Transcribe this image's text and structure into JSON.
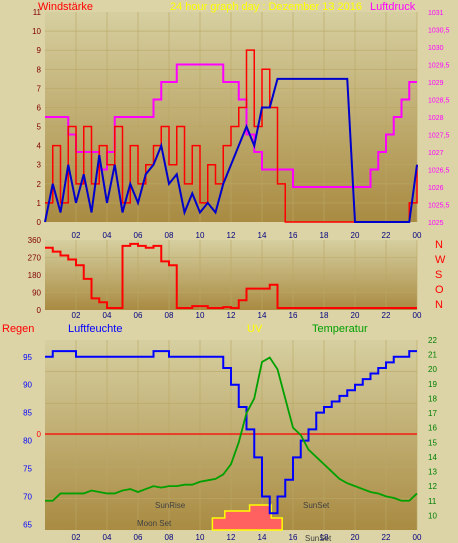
{
  "header": {
    "left_title": "Windstärke",
    "center_title": "24 hour graph day : Dezember 13 2016",
    "right_title": "Luftdruck"
  },
  "x_hours": [
    "02",
    "04",
    "06",
    "08",
    "10",
    "12",
    "14",
    "16",
    "18",
    "20",
    "22",
    "00"
  ],
  "colors": {
    "wind": "#ff0000",
    "wind_avg": "#0000cc",
    "pressure": "#ff00ff",
    "direction": "#ff0000",
    "humidity": "#0000ff",
    "temperature": "#00a000",
    "uv": "#ffff00",
    "rain_axis": "#ff0000",
    "plot_grad_top": "#d6cfa0",
    "plot_grad_bottom": "#a98b42",
    "grid": "#b9a764"
  },
  "chart_data": [
    {
      "type": "line",
      "title": "24 hour graph day : Dezember 13 2016",
      "ylabel": "Windstärke",
      "y2label": "Luftdruck",
      "ylim": [
        0,
        11
      ],
      "y2lim": [
        1025,
        1031
      ],
      "yticks": [
        "0",
        "1",
        "2",
        "3",
        "4",
        "5",
        "6",
        "7",
        "8",
        "9",
        "10",
        "11"
      ],
      "y2ticks": [
        "1025",
        "1025,5",
        "1026",
        "1026,5",
        "1027",
        "1027,5",
        "1028",
        "1028,5",
        "1029",
        "1029,5",
        "1030",
        "1030,5",
        "1031"
      ],
      "x": [
        0,
        0.5,
        1,
        1.5,
        2,
        2.5,
        3,
        3.5,
        4,
        4.5,
        5,
        5.5,
        6,
        6.5,
        7,
        7.5,
        8,
        8.5,
        9,
        9.5,
        10,
        10.5,
        11,
        11.5,
        12,
        12.5,
        13,
        13.5,
        14,
        14.5,
        15,
        15.5,
        16,
        16.5,
        17,
        17.5,
        18,
        18.5,
        19,
        19.5,
        20,
        20.5,
        21,
        21.5,
        22,
        22.5,
        23,
        23.5,
        24
      ],
      "series": [
        {
          "name": "Windstärke",
          "axis": "left",
          "values": [
            1,
            4,
            1,
            5,
            2,
            5,
            2,
            4,
            3,
            5,
            1,
            4,
            2,
            3,
            4,
            5,
            3,
            5,
            2,
            4,
            1,
            3,
            2,
            4,
            5,
            6,
            9,
            5,
            8,
            6,
            2,
            0,
            0,
            0,
            0,
            0,
            0,
            0,
            0,
            0,
            0,
            0,
            0,
            0,
            0,
            0,
            0,
            1,
            3
          ]
        },
        {
          "name": "",
          "axis": "left",
          "values": [
            0,
            2,
            0.5,
            3,
            1,
            2.5,
            0.5,
            3.5,
            1,
            3,
            0.5,
            2,
            1,
            2.5,
            3,
            4,
            2,
            2.5,
            0.5,
            1.5,
            0.5,
            1,
            0.5,
            2,
            3,
            4,
            5,
            4,
            6,
            6,
            7.5,
            7.5,
            7.5,
            7.5,
            7.5,
            7.5,
            7.5,
            7.5,
            7.5,
            7.5,
            0,
            0,
            0,
            0,
            0,
            0,
            0,
            0,
            3
          ]
        },
        {
          "name": "Luftdruck",
          "axis": "right",
          "values": [
            1028,
            1028,
            1028,
            1027.5,
            1027,
            1027,
            1027,
            1026.5,
            1027,
            1028,
            1028,
            1028,
            1028,
            1028,
            1028.5,
            1029,
            1029,
            1029.5,
            1029.5,
            1029.5,
            1029.5,
            1029.5,
            1029.5,
            1029,
            1029,
            1028.5,
            1027.5,
            1027,
            1026.5,
            1026.5,
            1026.5,
            1026.5,
            1026,
            1026,
            1026,
            1026,
            1026,
            1026,
            1026,
            1026,
            1026,
            1026,
            1026.5,
            1027,
            1027.5,
            1028,
            1028.5,
            1029,
            1029
          ]
        }
      ]
    },
    {
      "type": "line",
      "ylim": [
        0,
        360
      ],
      "yticks": [
        "0",
        "90",
        "180",
        "270",
        "360"
      ],
      "right_labels": [
        "N",
        "W",
        "S",
        "O",
        "N"
      ],
      "x": [
        0,
        0.5,
        1,
        1.5,
        2,
        2.5,
        3,
        3.5,
        4,
        4.5,
        5,
        5.5,
        6,
        6.5,
        7,
        7.5,
        8,
        8.5,
        9,
        9.5,
        10,
        10.5,
        11,
        11.5,
        12,
        12.5,
        13,
        13.5,
        14,
        14.5,
        15,
        15.5,
        16,
        16.5,
        17,
        17.5,
        18,
        18.5,
        19,
        19.5,
        20,
        20.5,
        21,
        21.5,
        22,
        22.5,
        23,
        23.5,
        24
      ],
      "series": [
        {
          "name": "",
          "values": [
            320,
            300,
            280,
            260,
            230,
            160,
            60,
            40,
            10,
            10,
            330,
            340,
            330,
            320,
            330,
            250,
            230,
            10,
            10,
            20,
            20,
            10,
            10,
            15,
            10,
            50,
            110,
            110,
            110,
            130,
            10,
            10,
            10,
            10,
            10,
            10,
            10,
            10,
            10,
            10,
            10,
            10,
            10,
            10,
            10,
            10,
            10,
            10,
            10
          ]
        }
      ]
    },
    {
      "type": "line",
      "y_left_label": "Regen",
      "humidity_label": "Luftfeuchte",
      "uv_label": "UV",
      "temperature_label": "Temperatur",
      "rain_tick": "0",
      "humidity_ylim": [
        64,
        98
      ],
      "humidity_ticks": [
        "65",
        "70",
        "75",
        "80",
        "85",
        "90",
        "95"
      ],
      "temperature_ylim": [
        9,
        22
      ],
      "temperature_ticks": [
        "10",
        "11",
        "12",
        "13",
        "14",
        "15",
        "16",
        "17",
        "18",
        "19",
        "20",
        "21",
        "22"
      ],
      "x": [
        0,
        0.5,
        1,
        1.5,
        2,
        2.5,
        3,
        3.5,
        4,
        4.5,
        5,
        5.5,
        6,
        6.5,
        7,
        7.5,
        8,
        8.5,
        9,
        9.5,
        10,
        10.5,
        11,
        11.5,
        12,
        12.5,
        13,
        13.5,
        14,
        14.5,
        15,
        15.5,
        16,
        16.5,
        17,
        17.5,
        18,
        18.5,
        19,
        19.5,
        20,
        20.5,
        21,
        21.5,
        22,
        22.5,
        23,
        23.5,
        24
      ],
      "series": [
        {
          "name": "Luftfeuchte",
          "values": [
            95,
            96,
            96,
            96,
            95,
            95,
            95,
            95,
            95,
            95,
            95,
            95,
            95,
            95,
            96,
            96,
            95,
            95,
            95,
            95,
            95,
            95,
            95,
            93,
            90,
            86,
            82,
            77,
            70,
            67,
            70,
            73,
            77,
            80,
            82,
            85,
            86,
            87,
            88,
            89,
            90,
            91,
            92,
            93,
            94,
            95,
            95,
            96,
            96
          ]
        },
        {
          "name": "Temperatur",
          "values": [
            11,
            11,
            11.5,
            11.5,
            11.5,
            11.5,
            11.7,
            11.6,
            11.5,
            11.5,
            11.7,
            11.8,
            11.6,
            11.8,
            12,
            11.9,
            12,
            12,
            12.1,
            12.1,
            12.3,
            12.4,
            12.5,
            12.8,
            13.5,
            15,
            17,
            18,
            20.5,
            20.8,
            20,
            18,
            16,
            15.5,
            14.5,
            14,
            13.5,
            13,
            12.5,
            12.2,
            12,
            11.8,
            11.6,
            11.5,
            11.3,
            11.2,
            11,
            11,
            11.5
          ]
        }
      ],
      "annotations": [
        "SunRise",
        "SunSet",
        "Moon Set",
        "SunSet"
      ]
    }
  ]
}
